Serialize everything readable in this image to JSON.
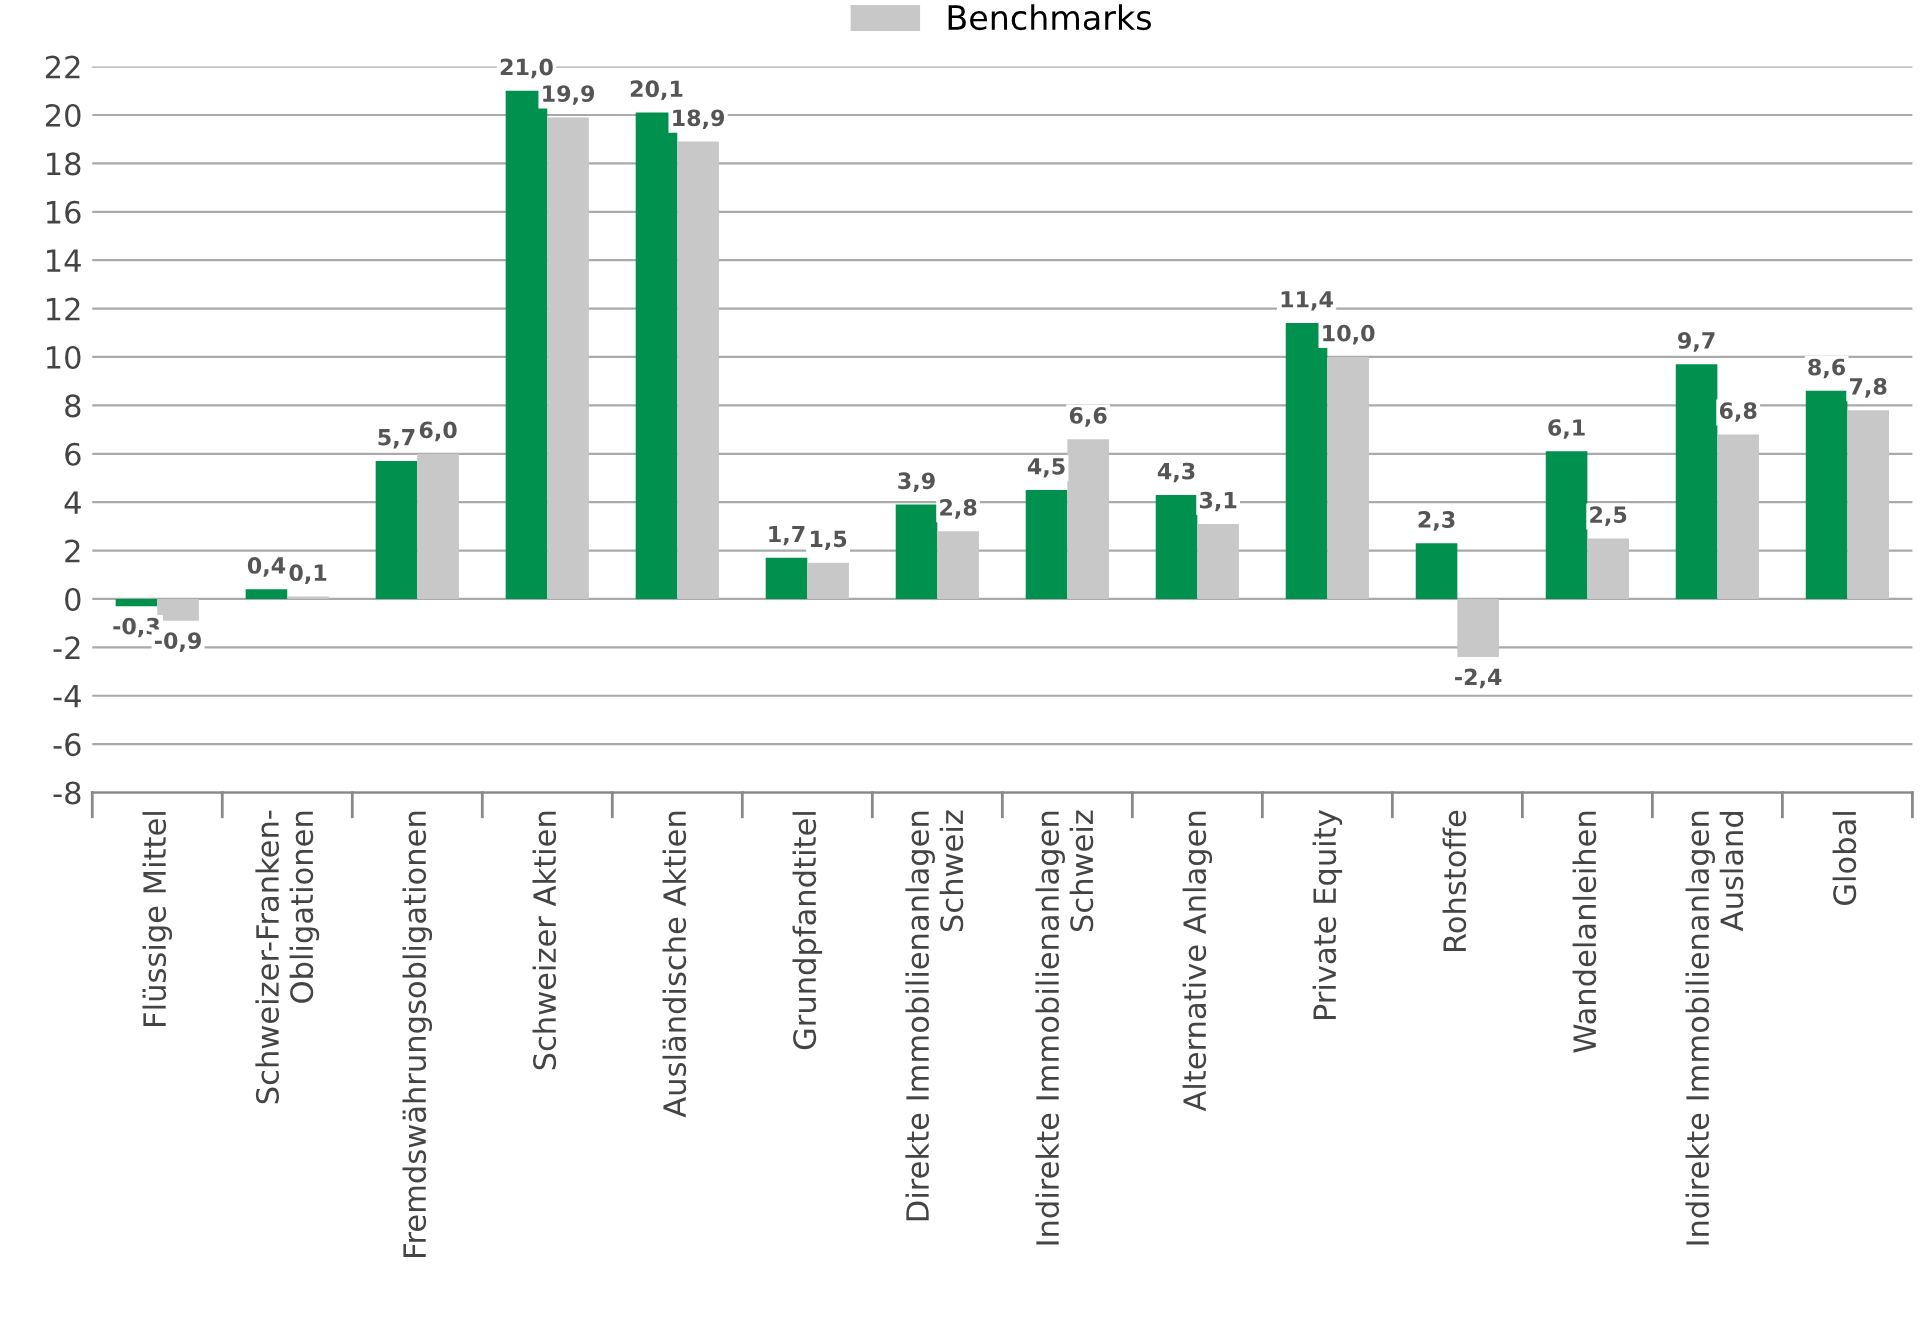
{
  "chart_data": {
    "type": "bar",
    "categories": [
      "Flüssige Mittel",
      "Schweizer-Franken-\nObligationen",
      "Fremdswährungsobligationen",
      "Schweizer Aktien",
      "Ausländische Aktien",
      "Grundpfandtitel",
      "Direkte Immobilienanlagen\nSchweiz",
      "Indirekte Immobilienanlagen\nSchweiz",
      "Alternative Anlagen",
      "Private Equity",
      "Rohstoffe",
      "Wandelanleihen",
      "Indirekte Immobilienanlagen\nAusland",
      "Global"
    ],
    "series": [
      {
        "color": "#00914f",
        "values": [
          -0.3,
          0.4,
          5.7,
          21.0,
          20.1,
          1.7,
          3.9,
          4.5,
          4.3,
          11.4,
          2.3,
          6.1,
          9.7,
          8.6
        ],
        "value_labels": [
          "-0,3",
          "0,4",
          "5,7",
          "21,0",
          "20,1",
          "1,7",
          "3,9",
          "4,5",
          "4,3",
          "11,4",
          "2,3",
          "6,1",
          "9,7",
          "8,6"
        ]
      },
      {
        "name": "Benchmarks",
        "color": "#c8c8c8",
        "values": [
          -0.9,
          0.1,
          6.0,
          19.9,
          18.9,
          1.5,
          2.8,
          6.6,
          3.1,
          10.0,
          -2.4,
          2.5,
          6.8,
          7.8
        ],
        "value_labels": [
          "-0,9",
          "0,1",
          "6,0",
          "19,9",
          "18,9",
          "1,5",
          "2,8",
          "6,6",
          "3,1",
          "10,0",
          "-2,4",
          "2,5",
          "6,8",
          "7,8"
        ]
      }
    ],
    "ylim": [
      -8,
      22
    ],
    "yticks": [
      -8,
      -6,
      -4,
      -2,
      0,
      2,
      4,
      6,
      8,
      10,
      12,
      14,
      16,
      18,
      20,
      22
    ],
    "grid": "y",
    "legend": "top"
  }
}
